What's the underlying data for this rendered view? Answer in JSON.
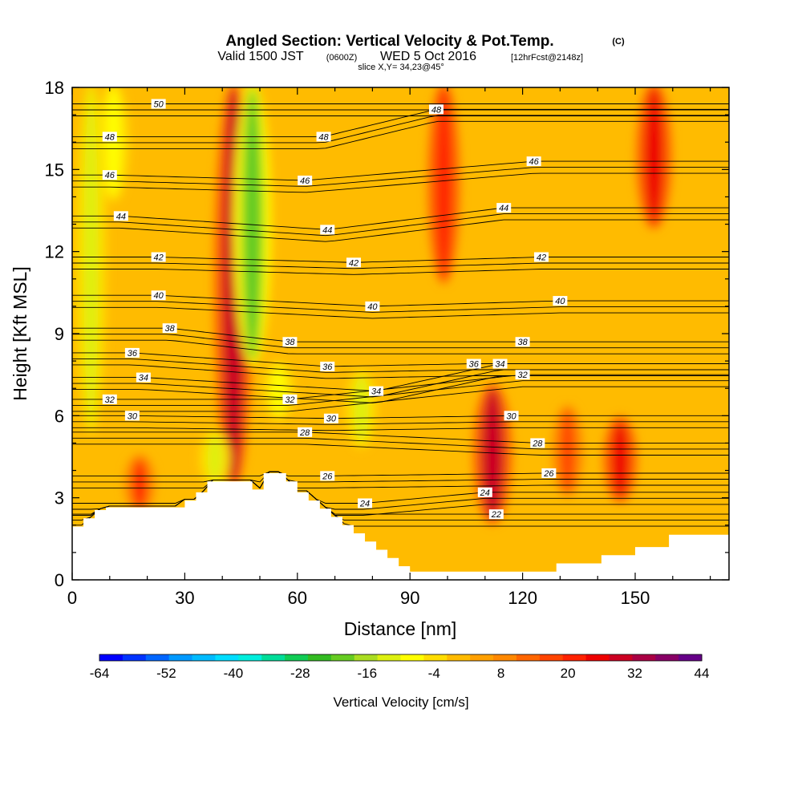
{
  "header": {
    "title": "Angled Section: Vertical Velocity & Pot.Temp.",
    "copyright": "(C)",
    "valid_prefix": "Valid 1500 JST",
    "valid_utc": "(0600Z)",
    "valid_date": "WED 5 Oct 2016",
    "forecast": "[12hrFcst@2148z]",
    "slice": "slice X,Y= 34,23@45°"
  },
  "chart_data": {
    "type": "heatmap",
    "title": "Angled Section: Vertical Velocity & Pot.Temp.",
    "xlabel": "Distance [nm]",
    "ylabel": "Height [Kft MSL]",
    "xlim": [
      0,
      175
    ],
    "ylim": [
      0,
      18
    ],
    "x_ticks": [
      0,
      30,
      60,
      90,
      120,
      150
    ],
    "y_ticks": [
      0,
      3,
      6,
      9,
      12,
      15,
      18
    ],
    "grid": false,
    "colorbar": {
      "label": "Vertical Velocity [cm/s]",
      "tick_labels": [
        "-64",
        "-52",
        "-40",
        "-28",
        "-16",
        "-4",
        "8",
        "20",
        "32",
        "44"
      ],
      "colors": [
        "#0000ff",
        "#0033ff",
        "#0066ff",
        "#0099ff",
        "#00bbff",
        "#00ddff",
        "#00eedd",
        "#00dd99",
        "#11cc55",
        "#33bb22",
        "#66cc22",
        "#aadd22",
        "#ddf011",
        "#ffff00",
        "#ffdd00",
        "#ffbb00",
        "#ffa000",
        "#ff8800",
        "#ff6600",
        "#ff4400",
        "#ff2200",
        "#ee0000",
        "#cc0022",
        "#aa0044",
        "#880066",
        "#660088"
      ]
    },
    "vertical_velocity_features": [
      {
        "x": 5,
        "y0": 5.5,
        "y1": 18,
        "value": -16
      },
      {
        "x": 11,
        "y0": 14,
        "y1": 18,
        "value": -10
      },
      {
        "x": 43,
        "y0": 3.5,
        "y1": 18,
        "value": 26
      },
      {
        "x": 48,
        "y0": 8,
        "y1": 18,
        "value": -24
      },
      {
        "x": 38,
        "y0": 3.6,
        "y1": 5.3,
        "value": -16
      },
      {
        "x": 55,
        "y0": 6,
        "y1": 7.8,
        "value": -12
      },
      {
        "x": 77,
        "y0": 5,
        "y1": 7.5,
        "value": -14
      },
      {
        "x": 99,
        "y0": 11,
        "y1": 18,
        "value": 18
      },
      {
        "x": 112,
        "y0": 2.2,
        "y1": 7,
        "value": 26
      },
      {
        "x": 132,
        "y0": 3.2,
        "y1": 6.2,
        "value": 14
      },
      {
        "x": 146,
        "y0": 3,
        "y1": 5.8,
        "value": 20
      },
      {
        "x": 155,
        "y0": 13,
        "y1": 18,
        "value": 22
      },
      {
        "x": 18,
        "y0": 2.6,
        "y1": 4.4,
        "value": 16
      }
    ],
    "theta_contour_labels": [
      {
        "value": "50",
        "x": 23,
        "y": 17.4
      },
      {
        "value": "48",
        "x": 10,
        "y": 16.2
      },
      {
        "value": "48",
        "x": 67,
        "y": 16.2
      },
      {
        "value": "48",
        "x": 97,
        "y": 17.2
      },
      {
        "value": "46",
        "x": 10,
        "y": 14.8
      },
      {
        "value": "46",
        "x": 62,
        "y": 14.6
      },
      {
        "value": "46",
        "x": 123,
        "y": 15.3
      },
      {
        "value": "44",
        "x": 13,
        "y": 13.3
      },
      {
        "value": "44",
        "x": 68,
        "y": 12.8
      },
      {
        "value": "44",
        "x": 115,
        "y": 13.6
      },
      {
        "value": "42",
        "x": 23,
        "y": 11.8
      },
      {
        "value": "42",
        "x": 75,
        "y": 11.6
      },
      {
        "value": "42",
        "x": 125,
        "y": 11.8
      },
      {
        "value": "40",
        "x": 23,
        "y": 10.4
      },
      {
        "value": "40",
        "x": 80,
        "y": 10
      },
      {
        "value": "40",
        "x": 130,
        "y": 10.2
      },
      {
        "value": "38",
        "x": 26,
        "y": 9.2
      },
      {
        "value": "38",
        "x": 58,
        "y": 8.7
      },
      {
        "value": "38",
        "x": 120,
        "y": 8.7
      },
      {
        "value": "36",
        "x": 16,
        "y": 8.3
      },
      {
        "value": "36",
        "x": 68,
        "y": 7.8
      },
      {
        "value": "36",
        "x": 107,
        "y": 7.9
      },
      {
        "value": "34",
        "x": 19,
        "y": 7.4
      },
      {
        "value": "34",
        "x": 81,
        "y": 6.9
      },
      {
        "value": "34",
        "x": 114,
        "y": 7.9
      },
      {
        "value": "32",
        "x": 10,
        "y": 6.6
      },
      {
        "value": "32",
        "x": 58,
        "y": 6.6
      },
      {
        "value": "32",
        "x": 120,
        "y": 7.5
      },
      {
        "value": "30",
        "x": 16,
        "y": 6
      },
      {
        "value": "30",
        "x": 69,
        "y": 5.9
      },
      {
        "value": "30",
        "x": 117,
        "y": 6
      },
      {
        "value": "28",
        "x": 62,
        "y": 5.4
      },
      {
        "value": "28",
        "x": 124,
        "y": 5
      },
      {
        "value": "26",
        "x": 68,
        "y": 3.8
      },
      {
        "value": "26",
        "x": 127,
        "y": 3.9
      },
      {
        "value": "24",
        "x": 78,
        "y": 2.8
      },
      {
        "value": "24",
        "x": 110,
        "y": 3.2
      },
      {
        "value": "22",
        "x": 113,
        "y": 2.4
      }
    ],
    "terrain": [
      [
        0,
        1.95
      ],
      [
        3,
        1.95
      ],
      [
        3,
        2.25
      ],
      [
        6,
        2.25
      ],
      [
        6,
        2.55
      ],
      [
        9,
        2.55
      ],
      [
        9,
        2.65
      ],
      [
        30,
        2.65
      ],
      [
        30,
        2.9
      ],
      [
        33,
        2.9
      ],
      [
        33,
        3.2
      ],
      [
        36,
        3.2
      ],
      [
        36,
        3.6
      ],
      [
        48,
        3.6
      ],
      [
        48,
        3.3
      ],
      [
        51,
        3.3
      ],
      [
        51,
        3.9
      ],
      [
        57,
        3.9
      ],
      [
        57,
        3.6
      ],
      [
        60,
        3.6
      ],
      [
        60,
        3.2
      ],
      [
        63,
        3.2
      ],
      [
        63,
        2.9
      ],
      [
        66,
        2.9
      ],
      [
        66,
        2.6
      ],
      [
        69,
        2.6
      ],
      [
        69,
        2.3
      ],
      [
        72,
        2.3
      ],
      [
        72,
        2.0
      ],
      [
        75,
        2.0
      ],
      [
        75,
        1.7
      ],
      [
        78,
        1.7
      ],
      [
        78,
        1.4
      ],
      [
        81,
        1.4
      ],
      [
        81,
        1.1
      ],
      [
        84,
        1.1
      ],
      [
        84,
        0.8
      ],
      [
        87,
        0.8
      ],
      [
        87,
        0.5
      ],
      [
        90,
        0.5
      ],
      [
        90,
        0.3
      ],
      [
        129,
        0.3
      ],
      [
        129,
        0.6
      ],
      [
        141,
        0.6
      ],
      [
        141,
        0.9
      ],
      [
        150,
        0.9
      ],
      [
        150,
        1.2
      ],
      [
        159,
        1.2
      ],
      [
        159,
        1.65
      ],
      [
        175,
        1.65
      ]
    ]
  }
}
